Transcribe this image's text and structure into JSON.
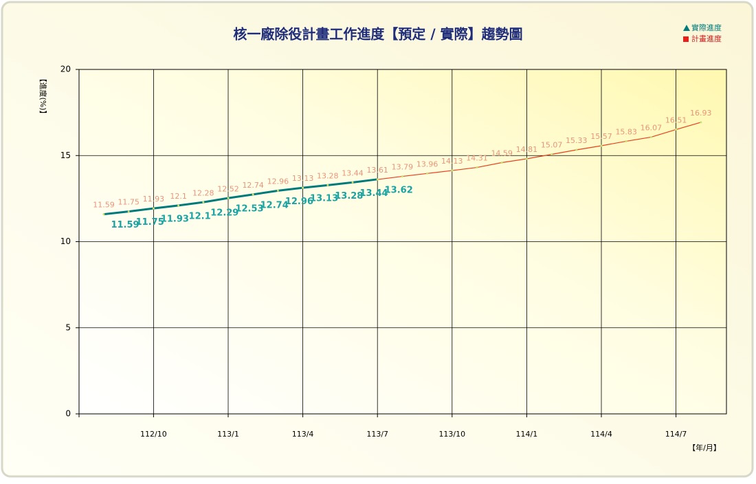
{
  "chart_data": {
    "type": "line",
    "title": "核一廠除役計畫工作進度【預定 / 實際】趨勢圖",
    "y_label": "【進度(%)】",
    "x_label": "【年/月】",
    "categories": [
      null,
      null,
      "112/10",
      null,
      null,
      "113/1",
      null,
      null,
      "113/4",
      null,
      null,
      "113/7",
      null,
      null,
      "113/10",
      null,
      null,
      "114/1",
      null,
      null,
      "114/4",
      null,
      null,
      "114/7",
      null
    ],
    "series": [
      {
        "name": "實際進度",
        "color": "#007a7a",
        "label_color": "#1aa3a3",
        "values": [
          11.59,
          11.75,
          11.93,
          12.1,
          12.29,
          12.53,
          12.74,
          12.96,
          13.13,
          13.28,
          13.44,
          13.62,
          null,
          null,
          null,
          null,
          null,
          null,
          null,
          null,
          null,
          null,
          null,
          null,
          null
        ]
      },
      {
        "name": "計畫進度",
        "color": "#e8401c",
        "label_color": "#e8957a",
        "values": [
          11.59,
          11.75,
          11.93,
          12.1,
          12.28,
          12.52,
          12.74,
          12.96,
          13.13,
          13.28,
          13.44,
          13.61,
          13.79,
          13.96,
          14.13,
          14.31,
          14.59,
          14.81,
          15.07,
          15.33,
          15.57,
          15.83,
          16.07,
          16.51,
          16.93
        ]
      }
    ],
    "ylim": [
      0,
      20
    ],
    "yticks": [
      0,
      5,
      10,
      15,
      20
    ],
    "grid": true,
    "legend": "top-right"
  }
}
